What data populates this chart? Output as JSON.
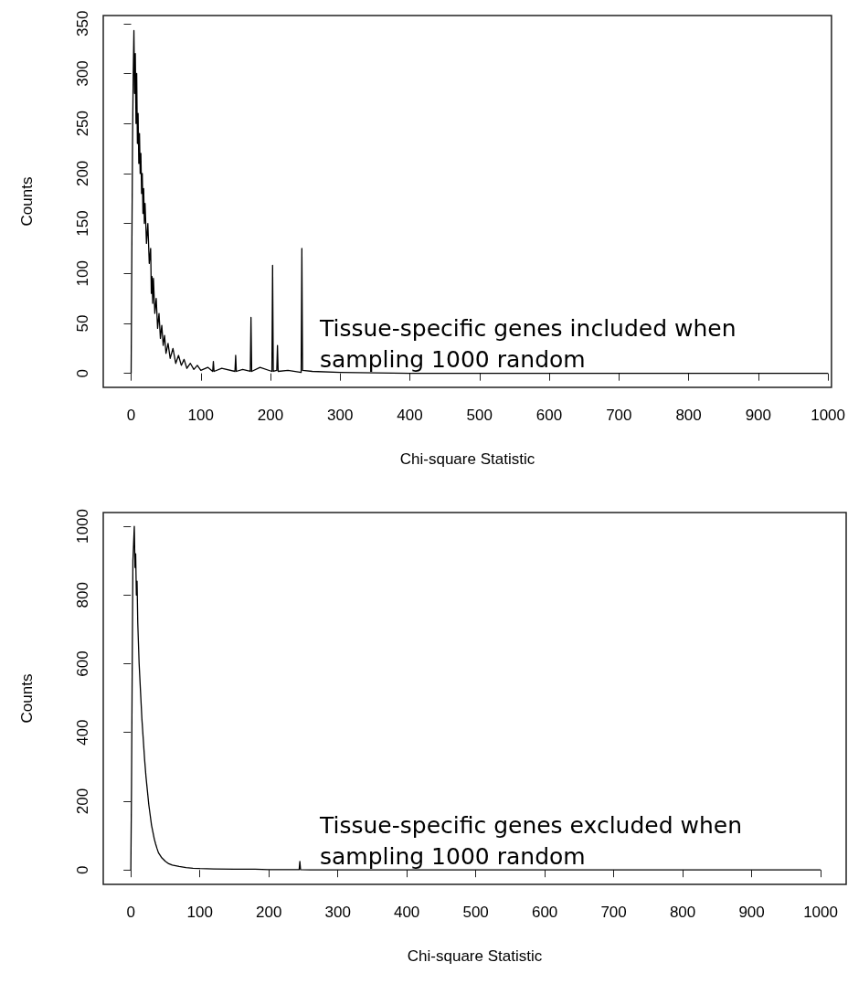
{
  "chart_data": [
    {
      "type": "line",
      "xlabel": "Chi-square Statistic",
      "ylabel": "Counts",
      "x": [
        0,
        1,
        2,
        3,
        4,
        5,
        6,
        7,
        8,
        9,
        10,
        11,
        12,
        13,
        14,
        15,
        16,
        17,
        18,
        19,
        20,
        22,
        24,
        26,
        28,
        29,
        30,
        31,
        32,
        34,
        36,
        38,
        40,
        42,
        44,
        46,
        48,
        50,
        53,
        56,
        60,
        64,
        68,
        72,
        76,
        80,
        85,
        90,
        95,
        100,
        110,
        117,
        118,
        119,
        130,
        149,
        150,
        151,
        160,
        171,
        172,
        173,
        185,
        202,
        203,
        204,
        209,
        210,
        211,
        225,
        244,
        245,
        246,
        260,
        300,
        400,
        600,
        800,
        1000
      ],
      "series": [
        {
          "color": "#000000",
          "values": [
            0,
            120,
            230,
            300,
            343,
            280,
            320,
            250,
            300,
            230,
            260,
            210,
            240,
            200,
            220,
            180,
            200,
            160,
            185,
            150,
            170,
            130,
            150,
            110,
            125,
            80,
            97,
            70,
            95,
            60,
            75,
            45,
            60,
            35,
            48,
            28,
            38,
            20,
            30,
            15,
            25,
            10,
            18,
            8,
            14,
            5,
            10,
            4,
            8,
            3,
            6,
            2,
            12,
            2,
            5,
            2,
            18,
            2,
            4,
            2,
            56,
            2,
            6,
            2,
            108,
            2,
            3,
            28,
            2,
            3,
            1,
            125,
            3,
            2,
            1,
            0,
            0,
            0,
            0
          ]
        }
      ],
      "xlim": [
        -40,
        1005
      ],
      "xticks": [
        0,
        100,
        200,
        300,
        400,
        500,
        600,
        700,
        800,
        900,
        1000
      ],
      "ylim": [
        -14,
        358
      ],
      "yticks": [
        0,
        50,
        100,
        150,
        200,
        250,
        300,
        350
      ],
      "marker": "none",
      "annotations": [
        "Tissue-specific genes included when sampling 1000 random"
      ]
    },
    {
      "type": "line",
      "xlabel": "Chi-square Statistic",
      "ylabel": "Counts",
      "x": [
        0,
        1,
        2,
        3,
        4,
        5,
        6,
        7,
        8,
        9,
        10,
        12,
        14,
        16,
        18,
        20,
        22,
        24,
        26,
        28,
        30,
        32,
        34,
        36,
        38,
        40,
        45,
        50,
        55,
        60,
        70,
        80,
        90,
        100,
        120,
        150,
        180,
        200,
        244,
        245,
        246,
        260,
        300,
        400,
        600,
        800,
        1000
      ],
      "series": [
        {
          "color": "#000000",
          "values": [
            0,
            250,
            600,
            900,
            950,
            1000,
            880,
            920,
            800,
            840,
            720,
            600,
            520,
            440,
            380,
            320,
            270,
            230,
            190,
            160,
            130,
            110,
            90,
            75,
            62,
            50,
            35,
            25,
            18,
            14,
            10,
            7,
            5,
            4,
            3,
            2,
            2,
            1,
            1,
            25,
            1,
            0,
            0,
            0,
            0,
            0,
            0
          ]
        }
      ],
      "xlim": [
        -40,
        1037
      ],
      "xticks": [
        0,
        100,
        200,
        300,
        400,
        500,
        600,
        700,
        800,
        900,
        1000
      ],
      "ylim": [
        -42,
        1040
      ],
      "yticks": [
        0,
        200,
        400,
        600,
        800,
        1000
      ],
      "marker": "none",
      "annotations": [
        "Tissue-specific genes excluded when sampling 1000 random"
      ]
    }
  ]
}
